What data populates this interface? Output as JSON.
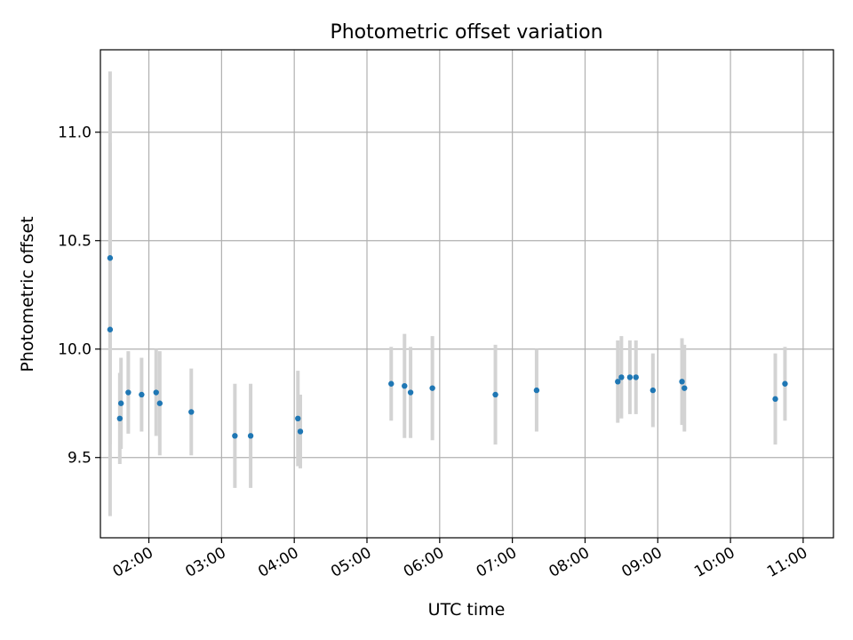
{
  "chart_data": {
    "type": "scatter",
    "title": "Photometric offset variation",
    "xlabel": "UTC time",
    "ylabel": "Photometric offset",
    "xlim": [
      "01:20",
      "11:25"
    ],
    "ylim": [
      9.13,
      11.38
    ],
    "x_ticks": [
      "02:00",
      "03:00",
      "04:00",
      "05:00",
      "06:00",
      "07:00",
      "08:00",
      "09:00",
      "10:00",
      "11:00"
    ],
    "y_ticks": [
      "9.5",
      "10.0",
      "10.5",
      "11.0"
    ],
    "grid": true,
    "error_bars": "vertical, light gray",
    "colors": {
      "marker": "#1f77b4",
      "errorbar": "#d3d3d3",
      "grid": "#b0b0b0",
      "axes": "#000000"
    },
    "points": [
      {
        "x": "01:28",
        "y": 10.42,
        "err": 0.86
      },
      {
        "x": "01:28",
        "y": 10.09,
        "err": 0.86
      },
      {
        "x": "01:36",
        "y": 9.68,
        "err": 0.21
      },
      {
        "x": "01:37",
        "y": 9.75,
        "err": 0.21
      },
      {
        "x": "01:43",
        "y": 9.8,
        "err": 0.19
      },
      {
        "x": "01:54",
        "y": 9.79,
        "err": 0.17
      },
      {
        "x": "02:06",
        "y": 9.8,
        "err": 0.2
      },
      {
        "x": "02:09",
        "y": 9.75,
        "err": 0.24
      },
      {
        "x": "02:35",
        "y": 9.71,
        "err": 0.2
      },
      {
        "x": "03:11",
        "y": 9.6,
        "err": 0.24
      },
      {
        "x": "03:24",
        "y": 9.6,
        "err": 0.24
      },
      {
        "x": "04:03",
        "y": 9.68,
        "err": 0.22
      },
      {
        "x": "04:05",
        "y": 9.62,
        "err": 0.17
      },
      {
        "x": "05:20",
        "y": 9.84,
        "err": 0.17
      },
      {
        "x": "05:31",
        "y": 9.83,
        "err": 0.24
      },
      {
        "x": "05:36",
        "y": 9.8,
        "err": 0.21
      },
      {
        "x": "05:54",
        "y": 9.82,
        "err": 0.24
      },
      {
        "x": "06:46",
        "y": 9.79,
        "err": 0.23
      },
      {
        "x": "07:20",
        "y": 9.81,
        "err": 0.19
      },
      {
        "x": "08:27",
        "y": 9.85,
        "err": 0.19
      },
      {
        "x": "08:30",
        "y": 9.87,
        "err": 0.19
      },
      {
        "x": "08:37",
        "y": 9.87,
        "err": 0.17
      },
      {
        "x": "08:42",
        "y": 9.87,
        "err": 0.17
      },
      {
        "x": "08:56",
        "y": 9.81,
        "err": 0.17
      },
      {
        "x": "09:20",
        "y": 9.85,
        "err": 0.2
      },
      {
        "x": "09:22",
        "y": 9.82,
        "err": 0.2
      },
      {
        "x": "10:37",
        "y": 9.77,
        "err": 0.21
      },
      {
        "x": "10:45",
        "y": 9.84,
        "err": 0.17
      }
    ]
  }
}
